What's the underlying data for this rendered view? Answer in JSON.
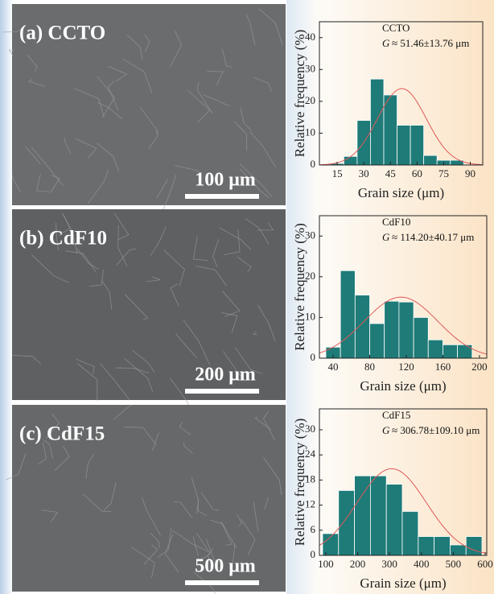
{
  "chart_data": [
    {
      "type": "histogram",
      "title": "CCTO",
      "annotation_symbol": "G",
      "annotation": "≈ 51.46±13.76 μm",
      "x_label": "Grain size (μm)",
      "y_label": "Relative frequency (%)",
      "bins": [
        11.25,
        18.75,
        26.25,
        33.75,
        41.25,
        48.75,
        56.25,
        63.75,
        71.25,
        78.75,
        86.25
      ],
      "values": [
        0.5,
        2.7,
        14,
        27,
        22,
        12.5,
        12.5,
        3,
        1.5,
        1.5
      ],
      "color": "#1e7b78",
      "xlim": [
        5,
        97
      ],
      "xticks": [
        15,
        30,
        45,
        60,
        75,
        90
      ],
      "ylim": [
        0,
        45
      ],
      "yticks": [
        0,
        10,
        20,
        30,
        40
      ],
      "fit": {
        "mean": 51.46,
        "sd": 13.76,
        "peak": 24,
        "color": "#e05a5a"
      }
    },
    {
      "type": "histogram",
      "title": "CdF10",
      "annotation_symbol": "G",
      "annotation": "≈ 114.20±40.17 μm",
      "x_label": "Grain size (μm)",
      "y_label": "Relative frequency (%)",
      "bins": [
        32,
        48,
        64,
        80,
        96,
        112,
        128,
        144,
        160,
        176,
        192
      ],
      "values": [
        2.7,
        21.5,
        15.5,
        8.5,
        14,
        13.8,
        10,
        4.5,
        3.3,
        3.3
      ],
      "color": "#1e7b78",
      "xlim": [
        25,
        208
      ],
      "xticks": [
        40,
        80,
        120,
        160,
        200
      ],
      "ylim": [
        0,
        35
      ],
      "yticks": [
        0,
        10,
        20,
        30
      ],
      "fit": {
        "mean": 114.2,
        "sd": 40.17,
        "peak": 15,
        "color": "#e05a5a"
      }
    },
    {
      "type": "histogram",
      "title": "CdF15",
      "annotation_symbol": "G",
      "annotation": "≈ 306.78±109.10 μm",
      "x_label": "Grain size (μm)",
      "y_label": "Relative frequency (%)",
      "bins": [
        90,
        140,
        190,
        240,
        290,
        340,
        390,
        440,
        490,
        540,
        590
      ],
      "values": [
        5.2,
        15.5,
        19,
        19,
        17,
        10.5,
        4.5,
        4.5,
        2.5,
        4.5
      ],
      "color": "#1e7b78",
      "xlim": [
        80,
        605
      ],
      "xticks": [
        100,
        200,
        300,
        400,
        500,
        600
      ],
      "ylim": [
        0,
        35
      ],
      "yticks": [
        0,
        6,
        12,
        18,
        24,
        30
      ],
      "fit": {
        "mean": 306.78,
        "sd": 109.1,
        "peak": 20.7,
        "color": "#e05a5a"
      }
    }
  ],
  "images": [
    {
      "label": "(a) CCTO",
      "scale_bar": "100 μm"
    },
    {
      "label": "(b) CdF10",
      "scale_bar": "200 μm"
    },
    {
      "label": "(c) CdF15",
      "scale_bar": "500 μm"
    }
  ]
}
